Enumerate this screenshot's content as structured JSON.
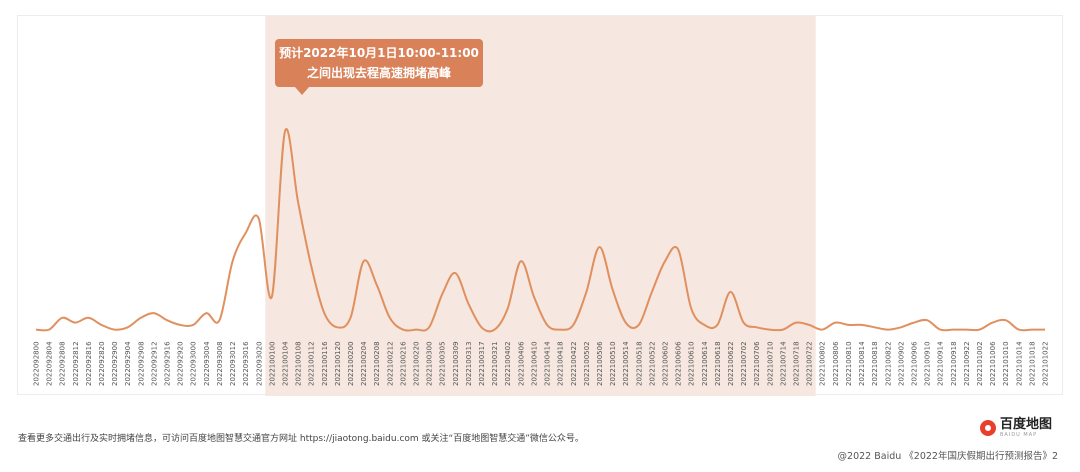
{
  "chart_data": {
    "type": "line",
    "title": "",
    "xlabel": "",
    "ylabel": "",
    "grid": false,
    "ylim": [
      0,
      100
    ],
    "color": "#e0905e",
    "highlight_color": "#f6e7e0",
    "highlight_range": [
      "2022100100",
      "2022100722"
    ],
    "categories": [
      "2022092800",
      "2022092804",
      "2022092808",
      "2022092812",
      "2022092816",
      "2022092820",
      "2022092900",
      "2022092904",
      "2022092908",
      "2022092912",
      "2022092916",
      "2022092920",
      "2022093000",
      "2022093004",
      "2022093008",
      "2022093012",
      "2022093016",
      "2022093020",
      "2022100100",
      "2022100104",
      "2022100108",
      "2022100112",
      "2022100116",
      "2022100120",
      "2022100200",
      "2022100204",
      "2022100208",
      "2022100212",
      "2022100216",
      "2022100220",
      "2022100300",
      "2022100305",
      "2022100309",
      "2022100313",
      "2022100317",
      "2022100321",
      "2022100402",
      "2022100406",
      "2022100410",
      "2022100414",
      "2022100418",
      "2022100422",
      "2022100502",
      "2022100506",
      "2022100510",
      "2022100514",
      "2022100518",
      "2022100522",
      "2022100602",
      "2022100606",
      "2022100610",
      "2022100614",
      "2022100618",
      "2022100622",
      "2022100702",
      "2022100706",
      "2022100710",
      "2022100714",
      "2022100718",
      "2022100722",
      "2022100802",
      "2022100806",
      "2022100810",
      "2022100814",
      "2022100818",
      "2022100822",
      "2022100902",
      "2022100906",
      "2022100910",
      "2022100914",
      "2022100918",
      "2022100922",
      "2022101002",
      "2022101006",
      "2022101010",
      "2022101014",
      "2022101018",
      "2022101022"
    ],
    "values": [
      1,
      1,
      6,
      4,
      6,
      3,
      1,
      2,
      6,
      8,
      5,
      3,
      3,
      8,
      5,
      30,
      42,
      48,
      15,
      85,
      55,
      28,
      8,
      2,
      6,
      30,
      20,
      6,
      1,
      1,
      2,
      16,
      25,
      12,
      2,
      1,
      10,
      30,
      15,
      3,
      1,
      3,
      17,
      36,
      18,
      4,
      3,
      17,
      30,
      35,
      10,
      3,
      3,
      17,
      4,
      2,
      1,
      1,
      4,
      3,
      1,
      4,
      3,
      3,
      2,
      1,
      2,
      4,
      5,
      1,
      1,
      1,
      1,
      4,
      5,
      1,
      1,
      1
    ],
    "annotation": "预计2022年10月1日10:00-11:00\n之间出现去程高速拥堵高峰"
  },
  "callout": {
    "line1": "预计2022年10月1日10:00-11:00",
    "line2": "之间出现去程高速拥堵高峰"
  },
  "footer": {
    "note": "查看更多交通出行及实时拥堵信息，可访问百度地图智慧交通官方网址 https://jiaotong.baidu.com 或关注“百度地图智慧交通”微信公众号。",
    "copyright": "@2022 Baidu 《2022年国庆假期出行预测报告》2"
  },
  "brand": {
    "name": "百度地图",
    "subtitle": "BAIDU MAP",
    "icon": "map-pin-icon"
  }
}
